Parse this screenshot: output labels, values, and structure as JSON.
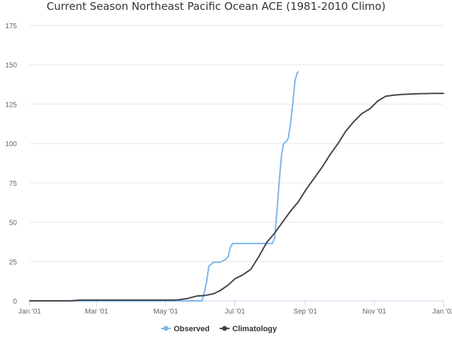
{
  "chart_data": {
    "type": "line",
    "title": "Current Season Northeast Pacific Ocean ACE (1981-2010 Climo)",
    "xlabel": "",
    "ylabel": "",
    "x_axis": {
      "type": "datetime",
      "range": [
        "2001-01-01",
        "2002-01-01"
      ],
      "ticks": [
        {
          "date": "2001-01-01",
          "label": "Jan '01"
        },
        {
          "date": "2001-03-01",
          "label": "Mar '01"
        },
        {
          "date": "2001-05-01",
          "label": "May '01"
        },
        {
          "date": "2001-07-01",
          "label": "Jul '01"
        },
        {
          "date": "2001-09-01",
          "label": "Sep '01"
        },
        {
          "date": "2001-11-01",
          "label": "Nov '01"
        },
        {
          "date": "2002-01-01",
          "label": "Jan '02"
        }
      ]
    },
    "ylim": [
      0,
      175
    ],
    "yticks": [
      0,
      25,
      50,
      75,
      100,
      125,
      150,
      175
    ],
    "grid": "horizontal",
    "legend": "bottom-center",
    "series": [
      {
        "name": "Observed",
        "color": "#7cb5ec",
        "points": [
          [
            "2001-01-01",
            0
          ],
          [
            "2001-05-01",
            0
          ],
          [
            "2001-06-02",
            0
          ],
          [
            "2001-06-04",
            5
          ],
          [
            "2001-06-06",
            12
          ],
          [
            "2001-06-08",
            22
          ],
          [
            "2001-06-12",
            24.5
          ],
          [
            "2001-06-18",
            24.5
          ],
          [
            "2001-06-22",
            26
          ],
          [
            "2001-06-25",
            28
          ],
          [
            "2001-06-27",
            34
          ],
          [
            "2001-06-29",
            36.5
          ],
          [
            "2001-07-15",
            36.5
          ],
          [
            "2001-08-03",
            36.5
          ],
          [
            "2001-08-05",
            40
          ],
          [
            "2001-08-07",
            56
          ],
          [
            "2001-08-09",
            75
          ],
          [
            "2001-08-11",
            92
          ],
          [
            "2001-08-13",
            100
          ],
          [
            "2001-08-15",
            101
          ],
          [
            "2001-08-17",
            103
          ],
          [
            "2001-08-19",
            112
          ],
          [
            "2001-08-21",
            125
          ],
          [
            "2001-08-23",
            140
          ],
          [
            "2001-08-25",
            145
          ],
          [
            "2001-08-26",
            145.5
          ]
        ]
      },
      {
        "name": "Climatology",
        "color": "#434348",
        "points": [
          [
            "2001-01-01",
            0
          ],
          [
            "2001-02-05",
            0
          ],
          [
            "2001-02-15",
            0.5
          ],
          [
            "2001-05-01",
            0.5
          ],
          [
            "2001-05-11",
            0.6
          ],
          [
            "2001-05-20",
            1.5
          ],
          [
            "2001-05-28",
            3
          ],
          [
            "2001-06-05",
            3.5
          ],
          [
            "2001-06-12",
            4.5
          ],
          [
            "2001-06-18",
            6.5
          ],
          [
            "2001-06-25",
            10
          ],
          [
            "2001-07-01",
            14
          ],
          [
            "2001-07-08",
            16.5
          ],
          [
            "2001-07-15",
            20
          ],
          [
            "2001-07-22",
            28
          ],
          [
            "2001-07-29",
            37
          ],
          [
            "2001-08-05",
            43
          ],
          [
            "2001-08-12",
            50
          ],
          [
            "2001-08-19",
            57
          ],
          [
            "2001-08-26",
            63
          ],
          [
            "2001-09-02",
            71
          ],
          [
            "2001-09-09",
            78
          ],
          [
            "2001-09-16",
            85
          ],
          [
            "2001-09-23",
            93
          ],
          [
            "2001-09-30",
            100
          ],
          [
            "2001-10-07",
            108
          ],
          [
            "2001-10-14",
            114
          ],
          [
            "2001-10-21",
            119
          ],
          [
            "2001-10-28",
            122
          ],
          [
            "2001-11-04",
            127
          ],
          [
            "2001-11-11",
            130
          ],
          [
            "2001-11-18",
            130.7
          ],
          [
            "2001-11-25",
            131.1
          ],
          [
            "2001-12-02",
            131.4
          ],
          [
            "2001-12-09",
            131.6
          ],
          [
            "2001-12-16",
            131.7
          ],
          [
            "2001-12-23",
            131.8
          ],
          [
            "2002-01-01",
            131.8
          ]
        ]
      }
    ]
  }
}
